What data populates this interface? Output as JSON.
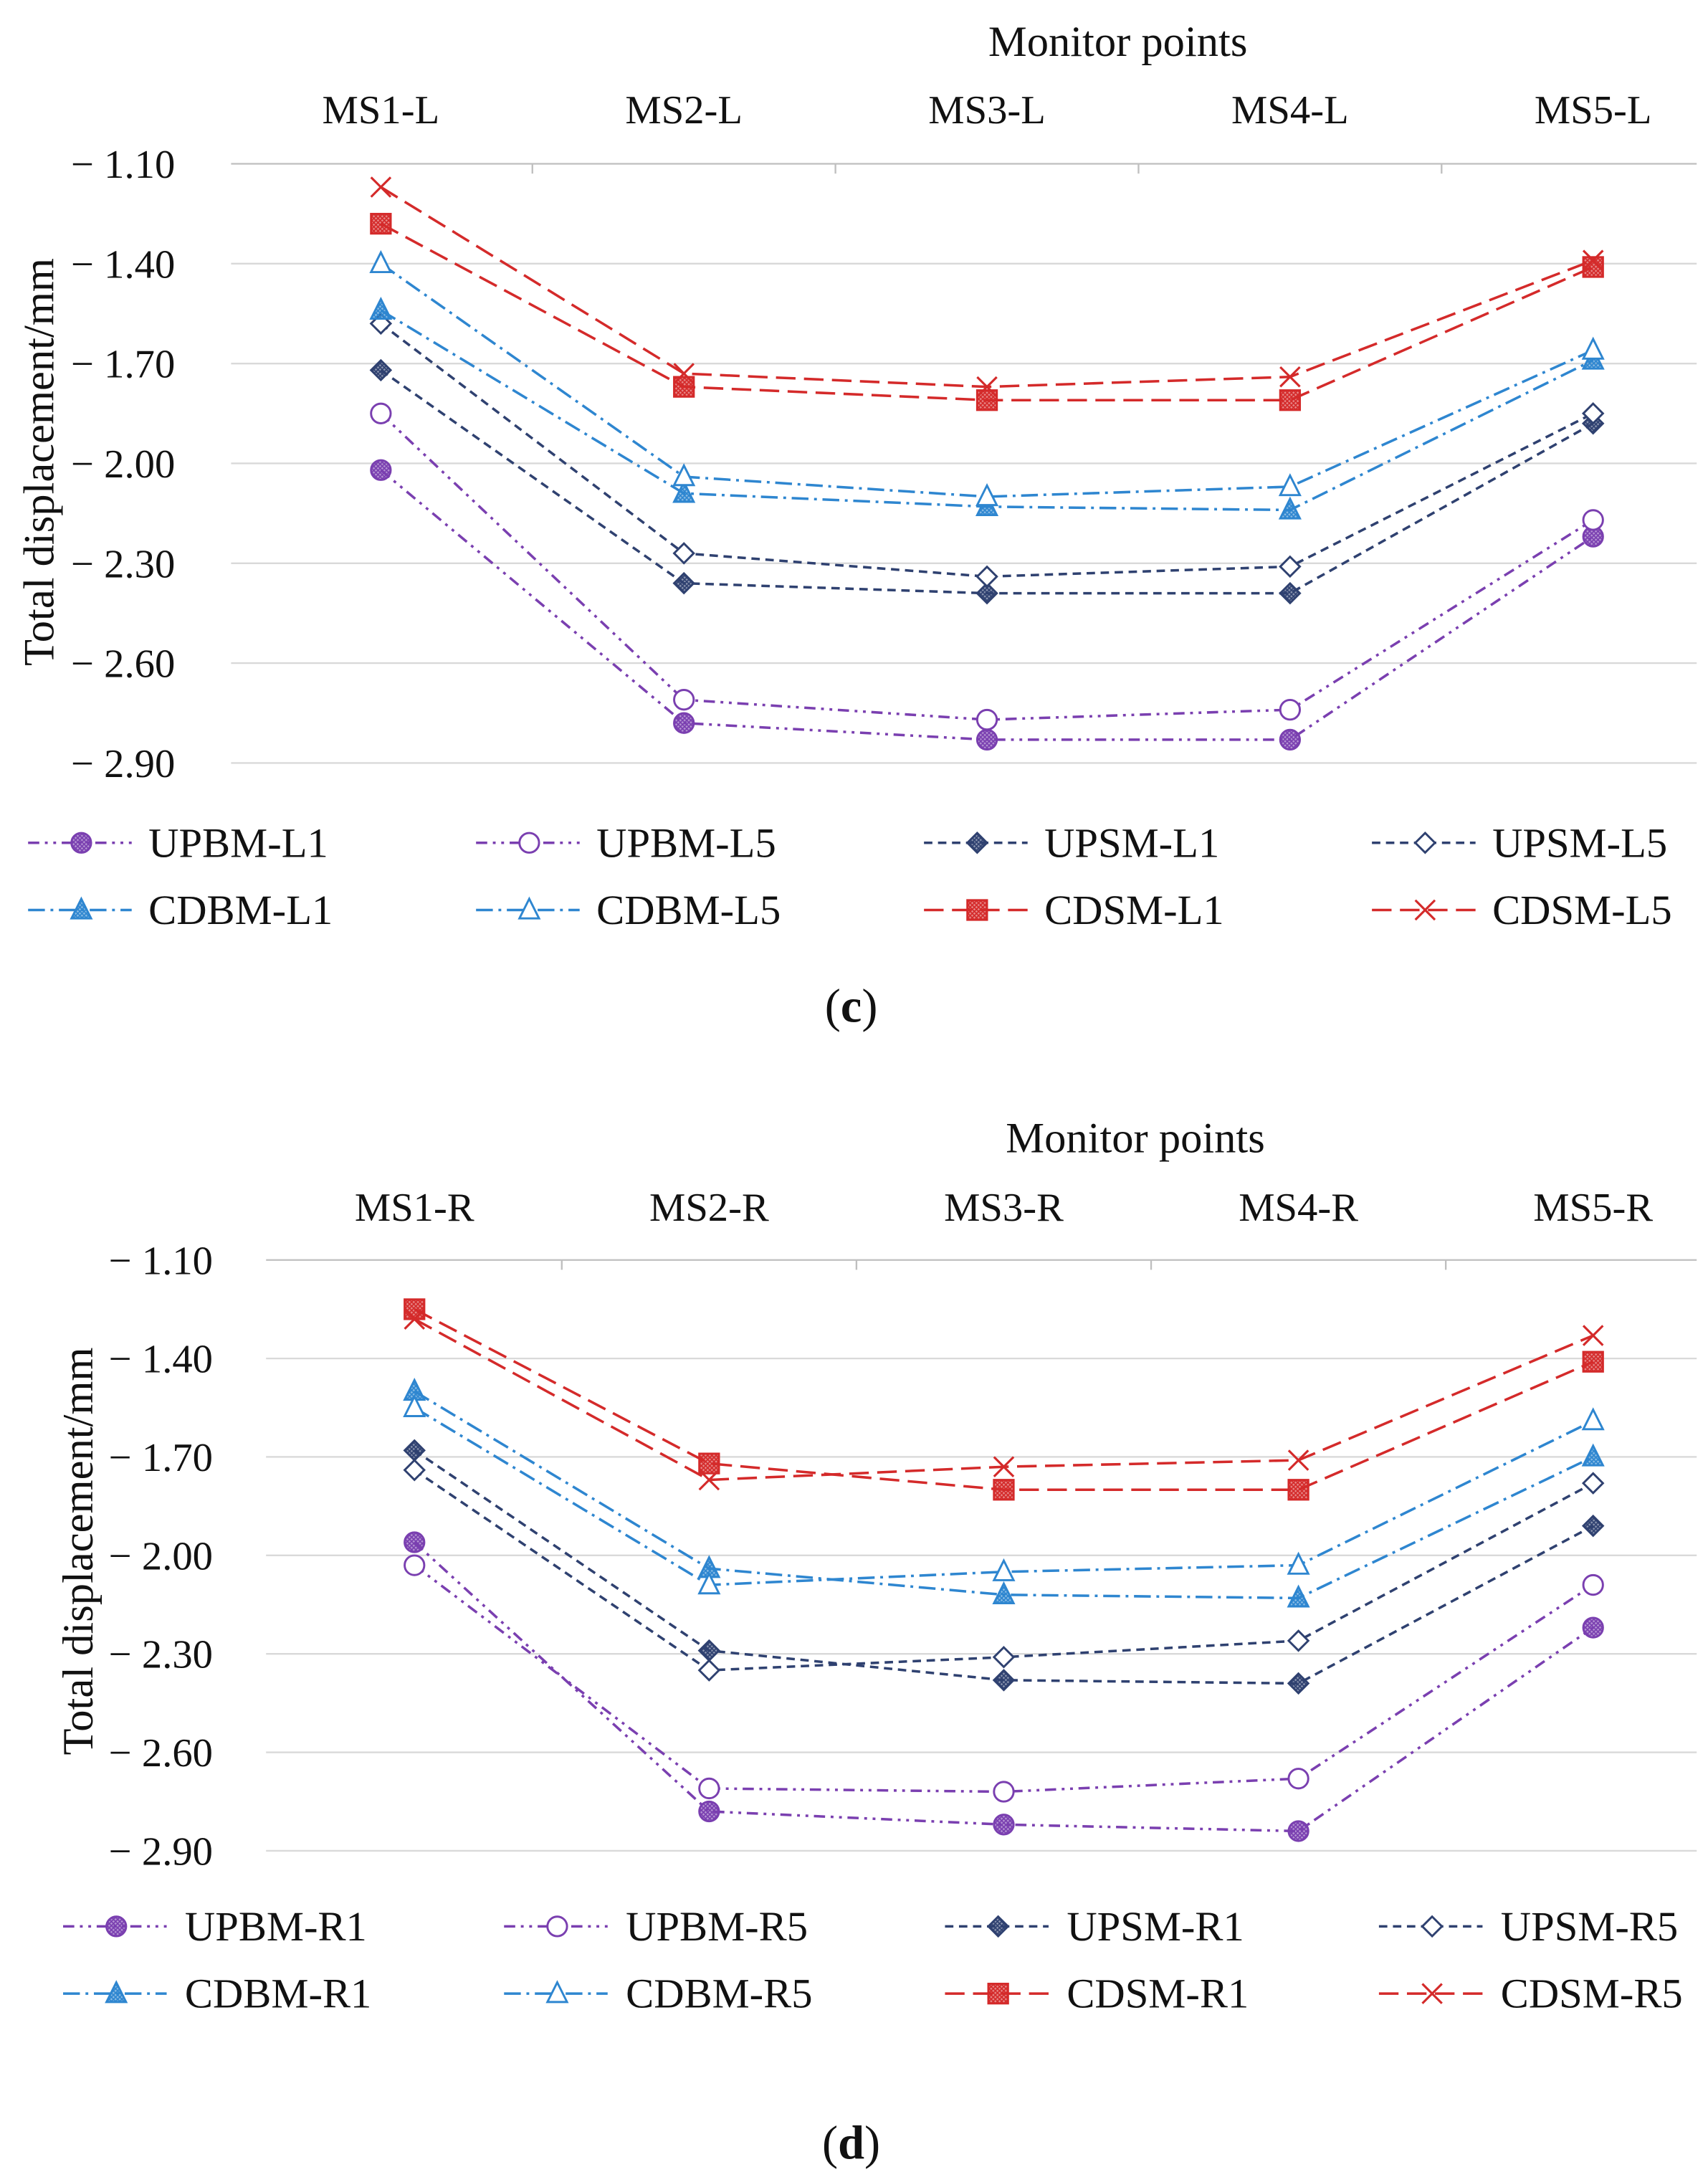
{
  "colors": {
    "purple": "#7a3fb0",
    "navy": "#2f4170",
    "blue": "#2e86d0",
    "red": "#d42a2a",
    "grid": "#d9d9d9"
  },
  "chart_data": [
    {
      "id": "c",
      "type": "line",
      "caption_open": "(",
      "caption_letter": "c",
      "caption_close": ")",
      "title": "Monitor points",
      "ylabel": "Total displacement/mm",
      "categories": [
        "MS1-L",
        "MS2-L",
        "MS3-L",
        "MS4-L",
        "MS5-L"
      ],
      "yticks": [
        "-1.10",
        "-1.40",
        "-1.70",
        "-2.00",
        "-2.30",
        "-2.60",
        "-2.90"
      ],
      "ylim": [
        -2.9,
        -1.1
      ],
      "grid": true,
      "legend_position": "bottom",
      "series": [
        {
          "name": "UPBM-L1",
          "style": "upbm",
          "marker": "circle-filled",
          "values": [
            -2.02,
            -2.78,
            -2.83,
            -2.83,
            -2.22
          ]
        },
        {
          "name": "UPBM-L5",
          "style": "upbm",
          "marker": "circle-open",
          "values": [
            -1.85,
            -2.71,
            -2.77,
            -2.74,
            -2.17
          ]
        },
        {
          "name": "UPSM-L1",
          "style": "upsm",
          "marker": "diamond-filled",
          "values": [
            -1.72,
            -2.36,
            -2.39,
            -2.39,
            -1.88
          ]
        },
        {
          "name": "UPSM-L5",
          "style": "upsm",
          "marker": "diamond-open",
          "values": [
            -1.58,
            -2.27,
            -2.34,
            -2.31,
            -1.85
          ]
        },
        {
          "name": "CDBM-L1",
          "style": "cdbm",
          "marker": "triangle-filled",
          "values": [
            -1.54,
            -2.09,
            -2.13,
            -2.14,
            -1.69
          ]
        },
        {
          "name": "CDBM-L5",
          "style": "cdbm",
          "marker": "triangle-open",
          "values": [
            -1.4,
            -2.04,
            -2.1,
            -2.07,
            -1.66
          ]
        },
        {
          "name": "CDSM-L1",
          "style": "cdsm",
          "marker": "square-filled",
          "values": [
            -1.28,
            -1.77,
            -1.81,
            -1.81,
            -1.41
          ]
        },
        {
          "name": "CDSM-L5",
          "style": "cdsm",
          "marker": "cross",
          "values": [
            -1.17,
            -1.73,
            -1.77,
            -1.74,
            -1.39
          ]
        }
      ]
    },
    {
      "id": "d",
      "type": "line",
      "caption_open": "(",
      "caption_letter": "d",
      "caption_close": ")",
      "title": "Monitor points",
      "ylabel": "Total displacement/mm",
      "categories": [
        "MS1-R",
        "MS2-R",
        "MS3-R",
        "MS4-R",
        "MS5-R"
      ],
      "yticks": [
        "-1.10",
        "-1.40",
        "-1.70",
        "-2.00",
        "-2.30",
        "-2.60",
        "-2.90"
      ],
      "ylim": [
        -2.9,
        -1.1
      ],
      "grid": true,
      "legend_position": "bottom",
      "series": [
        {
          "name": "UPBM-R1",
          "style": "upbm",
          "marker": "circle-filled",
          "values": [
            -1.96,
            -2.78,
            -2.82,
            -2.84,
            -2.22
          ]
        },
        {
          "name": "UPBM-R5",
          "style": "upbm",
          "marker": "circle-open",
          "values": [
            -2.03,
            -2.71,
            -2.72,
            -2.68,
            -2.09
          ]
        },
        {
          "name": "UPSM-R1",
          "style": "upsm",
          "marker": "diamond-filled",
          "values": [
            -1.68,
            -2.29,
            -2.38,
            -2.39,
            -1.91
          ]
        },
        {
          "name": "UPSM-R5",
          "style": "upsm",
          "marker": "diamond-open",
          "values": [
            -1.74,
            -2.35,
            -2.31,
            -2.26,
            -1.78
          ]
        },
        {
          "name": "CDBM-R1",
          "style": "cdbm",
          "marker": "triangle-filled",
          "values": [
            -1.5,
            -2.04,
            -2.12,
            -2.13,
            -1.7
          ]
        },
        {
          "name": "CDBM-R5",
          "style": "cdbm",
          "marker": "triangle-open",
          "values": [
            -1.55,
            -2.09,
            -2.05,
            -2.03,
            -1.59
          ]
        },
        {
          "name": "CDSM-R1",
          "style": "cdsm",
          "marker": "square-filled",
          "values": [
            -1.25,
            -1.72,
            -1.8,
            -1.8,
            -1.41
          ]
        },
        {
          "name": "CDSM-R5",
          "style": "cdsm",
          "marker": "cross",
          "values": [
            -1.28,
            -1.77,
            -1.73,
            -1.71,
            -1.33
          ]
        }
      ]
    }
  ]
}
